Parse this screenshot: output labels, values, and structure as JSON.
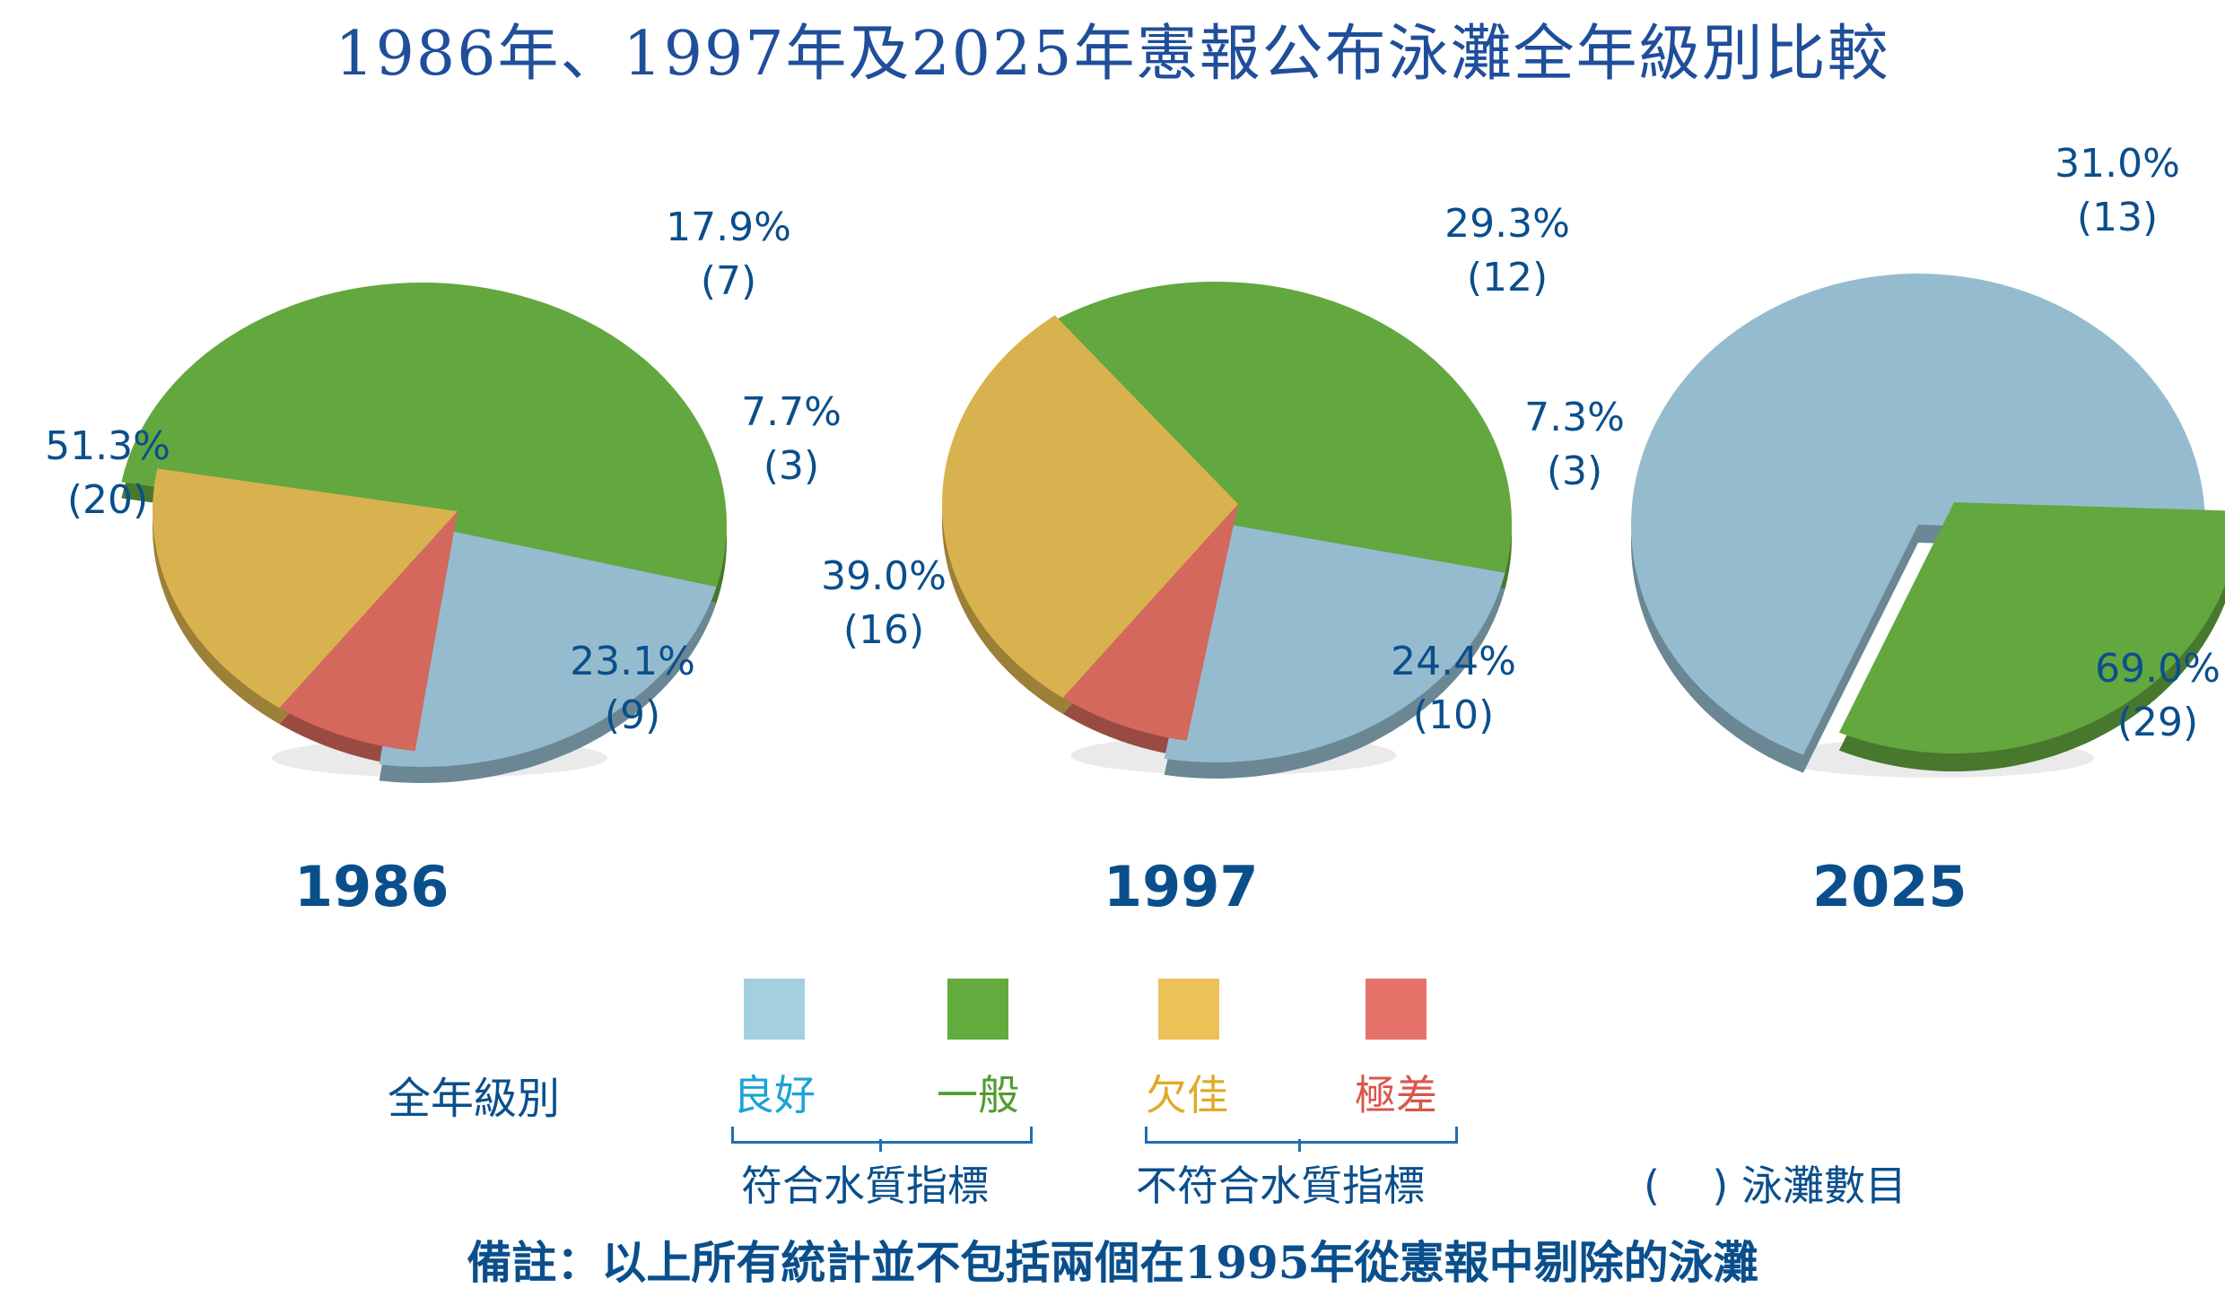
{
  "title": "1986年、1997年及2025年憲報公布泳灘全年級別比較",
  "colors": {
    "good": "#95bcce",
    "fair": "#63a73f",
    "poor": "#d8b24e",
    "very_poor": "#d4685c",
    "label_text": "#0a4f8c",
    "legend_good": "#a3cfe1",
    "legend_fair": "#62ac3e",
    "legend_poor": "#ecc157",
    "legend_very_poor": "#e6736a"
  },
  "chart_data": [
    {
      "type": "pie",
      "year": "1986",
      "categories": [
        "良好",
        "一般",
        "欠佳",
        "極差"
      ],
      "values": [
        23.1,
        51.3,
        17.9,
        7.7
      ],
      "counts": [
        9,
        20,
        7,
        3
      ],
      "labels": [
        {
          "pct": "23.1%",
          "count": "(9)"
        },
        {
          "pct": "51.3%",
          "count": "(20)"
        },
        {
          "pct": "17.9%",
          "count": "(7)"
        },
        {
          "pct": "7.7%",
          "count": "(3)"
        }
      ]
    },
    {
      "type": "pie",
      "year": "1997",
      "categories": [
        "良好",
        "一般",
        "欠佳",
        "極差"
      ],
      "values": [
        24.4,
        39.0,
        29.3,
        7.3
      ],
      "counts": [
        10,
        16,
        12,
        3
      ],
      "labels": [
        {
          "pct": "24.4%",
          "count": "(10)"
        },
        {
          "pct": "39.0%",
          "count": "(16)"
        },
        {
          "pct": "29.3%",
          "count": "(12)"
        },
        {
          "pct": "7.3%",
          "count": "(3)"
        }
      ]
    },
    {
      "type": "pie",
      "year": "2025",
      "categories": [
        "良好",
        "一般"
      ],
      "values": [
        69.0,
        31.0
      ],
      "counts": [
        29,
        13
      ],
      "labels": [
        {
          "pct": "69.0%",
          "count": "(29)"
        },
        {
          "pct": "31.0%",
          "count": "(13)"
        }
      ]
    }
  ],
  "legend": {
    "title": "全年級別",
    "items": [
      {
        "label": "良好",
        "color": "#a3cfe1",
        "text_color": "#1aa3d8"
      },
      {
        "label": "一般",
        "color": "#62ac3e",
        "text_color": "#4e9d2e"
      },
      {
        "label": "欠佳",
        "color": "#ecc157",
        "text_color": "#e0aa2a"
      },
      {
        "label": "極差",
        "color": "#e6736a",
        "text_color": "#d9574c"
      }
    ],
    "group_meets": "符合水質指標",
    "group_fails": "不符合水質指標",
    "count_note": "(    ) 泳灘數目"
  },
  "footnote": "備註：以上所有統計並不包括兩個在1995年從憲報中剔除的泳灘"
}
